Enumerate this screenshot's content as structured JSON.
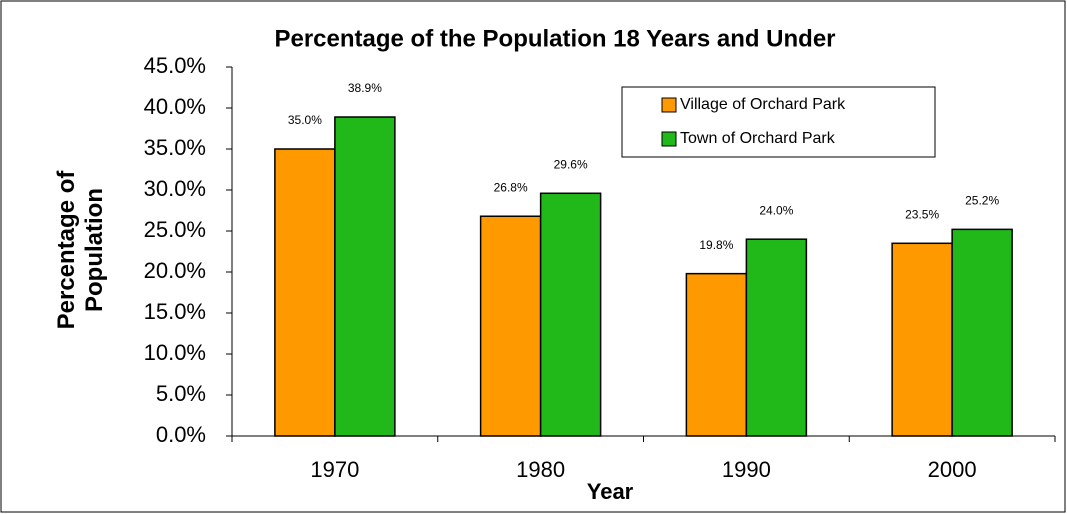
{
  "chart_data": {
    "type": "bar",
    "title": "Percentage of the Population 18 Years and Under",
    "x_label": "Year",
    "y_label": [
      "Percentage of",
      "Population"
    ],
    "categories": [
      "1970",
      "1980",
      "1990",
      "2000"
    ],
    "series": [
      {
        "name": "Village of Orchard Park",
        "color": "#ff9900",
        "values": [
          35.0,
          26.8,
          19.8,
          23.5
        ],
        "value_labels": [
          "35.0%",
          "26.8%",
          "19.8%",
          "23.5%"
        ]
      },
      {
        "name": "Town of Orchard Park",
        "color": "#21b81a",
        "values": [
          38.9,
          29.6,
          24.0,
          25.2
        ],
        "value_labels": [
          "38.9%",
          "29.6%",
          "24.0%",
          "25.2%"
        ]
      }
    ],
    "ylim": [
      0,
      45
    ],
    "yticks": [
      {
        "value": 0,
        "label": "0.0%"
      },
      {
        "value": 5,
        "label": "5.0%"
      },
      {
        "value": 10,
        "label": "10.0%"
      },
      {
        "value": 15,
        "label": "15.0%"
      },
      {
        "value": 20,
        "label": "20.0%"
      },
      {
        "value": 25,
        "label": "25.0%"
      },
      {
        "value": 30,
        "label": "30.0%"
      },
      {
        "value": 35,
        "label": "35.0%"
      },
      {
        "value": 40,
        "label": "40.0%"
      },
      {
        "value": 45,
        "label": "45.0%"
      }
    ],
    "grid": false,
    "legend": "upper right"
  }
}
